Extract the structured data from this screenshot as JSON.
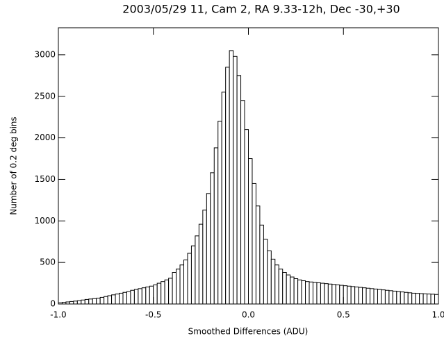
{
  "chart_data": {
    "type": "histogram",
    "title": "2003/05/29 11, Cam 2, RA 9.33-12h, Dec -30,+30",
    "xlabel": "Smoothed Differences (ADU)",
    "ylabel": "Number of 0.2 deg bins",
    "bins": [
      -1.0,
      -0.98,
      -0.96,
      -0.94,
      -0.92,
      -0.9,
      -0.88,
      -0.86,
      -0.84,
      -0.82,
      -0.8,
      -0.78,
      -0.76,
      -0.74,
      -0.72,
      -0.7,
      -0.68,
      -0.66,
      -0.64,
      -0.62,
      -0.6,
      -0.58,
      -0.56,
      -0.54,
      -0.52,
      -0.5,
      -0.48,
      -0.46,
      -0.44,
      -0.42,
      -0.4,
      -0.38,
      -0.36,
      -0.34,
      -0.32,
      -0.3,
      -0.28,
      -0.26,
      -0.24,
      -0.22,
      -0.2,
      -0.18,
      -0.16,
      -0.14,
      -0.12,
      -0.1,
      -0.08,
      -0.06,
      -0.04,
      -0.02,
      0.0,
      0.02,
      0.04,
      0.06,
      0.08,
      0.1,
      0.12,
      0.14,
      0.16,
      0.18,
      0.2,
      0.22,
      0.24,
      0.26,
      0.28,
      0.3,
      0.32,
      0.34,
      0.36,
      0.38,
      0.4,
      0.42,
      0.44,
      0.46,
      0.48,
      0.5,
      0.52,
      0.54,
      0.56,
      0.58,
      0.6,
      0.62,
      0.64,
      0.66,
      0.68,
      0.7,
      0.72,
      0.74,
      0.76,
      0.78,
      0.8,
      0.82,
      0.84,
      0.86,
      0.88,
      0.9,
      0.92,
      0.94,
      0.96,
      0.98,
      1.0
    ],
    "counts": [
      15,
      20,
      25,
      30,
      35,
      40,
      48,
      55,
      60,
      65,
      70,
      80,
      90,
      100,
      110,
      120,
      130,
      140,
      150,
      165,
      175,
      185,
      195,
      205,
      215,
      230,
      250,
      270,
      290,
      310,
      380,
      420,
      470,
      530,
      610,
      700,
      820,
      960,
      1130,
      1330,
      1580,
      1880,
      2200,
      2550,
      2850,
      3050,
      2980,
      2750,
      2450,
      2100,
      1750,
      1450,
      1180,
      950,
      780,
      640,
      540,
      470,
      420,
      380,
      350,
      325,
      305,
      290,
      280,
      270,
      265,
      260,
      255,
      250,
      245,
      240,
      235,
      230,
      225,
      220,
      215,
      210,
      205,
      200,
      195,
      190,
      185,
      180,
      175,
      170,
      165,
      160,
      155,
      150,
      145,
      140,
      135,
      130,
      128,
      125,
      122,
      120,
      118,
      115
    ],
    "color": "#ffffff",
    "xlim": [
      -1.0,
      1.0
    ],
    "xticks": [
      {
        "value": -1.0,
        "label": "-1.0"
      },
      {
        "value": -0.5,
        "label": "-0.5"
      },
      {
        "value": 0,
        "label": "0.0"
      },
      0.5,
      {
        "value": 1.0,
        "label": "1.0"
      }
    ],
    "ylim": [
      0,
      3325
    ],
    "yticks": [
      0,
      500,
      1000,
      1500,
      2000,
      2500,
      3000
    ]
  }
}
